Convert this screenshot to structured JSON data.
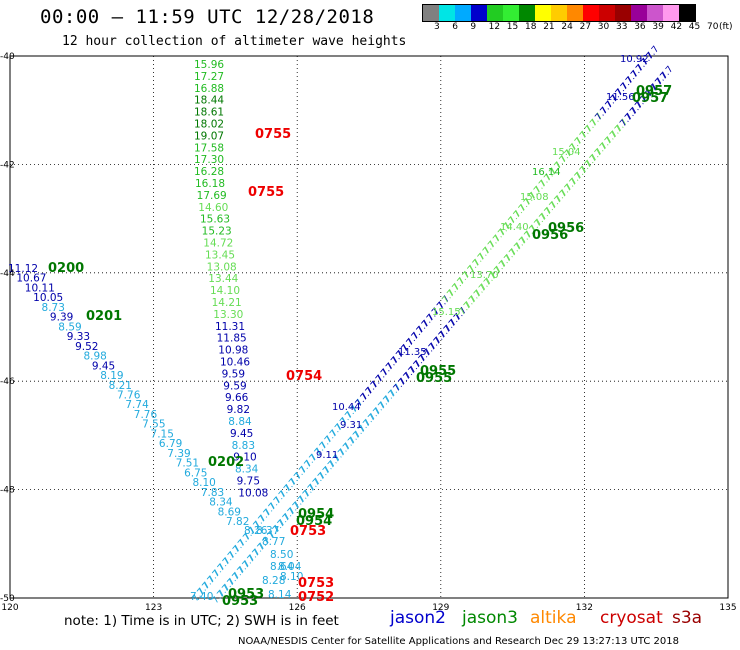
{
  "header": {
    "title": "00:00 – 11:59 UTC 12/28/2018",
    "subtitle": "12 hour collection of altimeter wave heights"
  },
  "legend": {
    "unit": "(ft)",
    "swatch_colors": [
      "#808080",
      "#00e5e5",
      "#00aaff",
      "#0000cc",
      "#22cc22",
      "#33ee33",
      "#008800",
      "#ffff00",
      "#ffcc00",
      "#ff8800",
      "#ff0000",
      "#cc0000",
      "#990000",
      "#990099",
      "#cc55cc",
      "#ff99ee",
      "#000000"
    ],
    "ticks": [
      "3",
      "6",
      "9",
      "12",
      "15",
      "18",
      "21",
      "24",
      "27",
      "30",
      "33",
      "36",
      "39",
      "42",
      "45",
      "70"
    ]
  },
  "axes": {
    "x_ticks": [
      "120",
      "123",
      "126",
      "129",
      "132",
      "135"
    ],
    "y_ticks": [
      "-40",
      "-42",
      "-44",
      "-46",
      "-48",
      "-50"
    ]
  },
  "colors": {
    "light_blue": "#22aadd",
    "dark_blue": "#0000aa",
    "light_green": "#66dd55",
    "green": "#22bb22",
    "dark_green": "#007700",
    "red": "#ee0000"
  },
  "tracks": {
    "north_south": [
      {
        "v": "15.96",
        "c": "green"
      },
      {
        "v": "17.27",
        "c": "green"
      },
      {
        "v": "16.88",
        "c": "green"
      },
      {
        "v": "18.44",
        "c": "dark_green"
      },
      {
        "v": "18.61",
        "c": "dark_green"
      },
      {
        "v": "18.02",
        "c": "dark_green"
      },
      {
        "v": "19.07",
        "c": "dark_green"
      },
      {
        "v": "17.58",
        "c": "green"
      },
      {
        "v": "17.30",
        "c": "green"
      },
      {
        "v": "16.28",
        "c": "green"
      },
      {
        "v": "16.18",
        "c": "green"
      },
      {
        "v": "17.69",
        "c": "green"
      },
      {
        "v": "14.60",
        "c": "light_green"
      },
      {
        "v": "15.63",
        "c": "green"
      },
      {
        "v": "15.23",
        "c": "green"
      },
      {
        "v": "14.72",
        "c": "light_green"
      },
      {
        "v": "13.45",
        "c": "light_green"
      },
      {
        "v": "13.08",
        "c": "light_green"
      },
      {
        "v": "13.44",
        "c": "light_green"
      },
      {
        "v": "14.10",
        "c": "light_green"
      },
      {
        "v": "14.21",
        "c": "light_green"
      },
      {
        "v": "13.30",
        "c": "light_green"
      },
      {
        "v": "11.31",
        "c": "dark_blue"
      },
      {
        "v": "11.85",
        "c": "dark_blue"
      },
      {
        "v": "10.98",
        "c": "dark_blue"
      },
      {
        "v": "10.46",
        "c": "dark_blue"
      },
      {
        "v": "9.59",
        "c": "dark_blue"
      },
      {
        "v": "9.59",
        "c": "dark_blue"
      },
      {
        "v": "9.66",
        "c": "dark_blue"
      },
      {
        "v": "9.82",
        "c": "dark_blue"
      },
      {
        "v": "8.84",
        "c": "light_blue"
      },
      {
        "v": "9.45",
        "c": "dark_blue"
      },
      {
        "v": "8.83",
        "c": "light_blue"
      },
      {
        "v": "9.10",
        "c": "dark_blue"
      },
      {
        "v": "8.34",
        "c": "light_blue"
      },
      {
        "v": "9.75",
        "c": "dark_blue"
      },
      {
        "v": "10.08",
        "c": "dark_blue"
      }
    ],
    "northwest": [
      {
        "v": "11.12",
        "c": "dark_blue"
      },
      {
        "v": "10.67",
        "c": "dark_blue"
      },
      {
        "v": "10.11",
        "c": "dark_blue"
      },
      {
        "v": "10.05",
        "c": "dark_blue"
      },
      {
        "v": "8.73",
        "c": "light_blue"
      },
      {
        "v": "9.39",
        "c": "dark_blue"
      },
      {
        "v": "8.59",
        "c": "light_blue"
      },
      {
        "v": "9.33",
        "c": "dark_blue"
      },
      {
        "v": "9.52",
        "c": "dark_blue"
      },
      {
        "v": "8.98",
        "c": "light_blue"
      },
      {
        "v": "9.45",
        "c": "dark_blue"
      },
      {
        "v": "8.19",
        "c": "light_blue"
      },
      {
        "v": "8.21",
        "c": "light_blue"
      },
      {
        "v": "7.76",
        "c": "light_blue"
      },
      {
        "v": "7.74",
        "c": "light_blue"
      },
      {
        "v": "7.76",
        "c": "light_blue"
      },
      {
        "v": "7.55",
        "c": "light_blue"
      },
      {
        "v": "7.15",
        "c": "light_blue"
      },
      {
        "v": "6.79",
        "c": "light_blue"
      },
      {
        "v": "7.39",
        "c": "light_blue"
      },
      {
        "v": "7.51",
        "c": "light_blue"
      },
      {
        "v": "6.75",
        "c": "light_blue"
      },
      {
        "v": "8.10",
        "c": "light_blue"
      },
      {
        "v": "7.83",
        "c": "light_blue"
      },
      {
        "v": "8.34",
        "c": "light_blue"
      },
      {
        "v": "8.69",
        "c": "light_blue"
      },
      {
        "v": "7.82",
        "c": "light_blue"
      }
    ],
    "bottom_cluster": [
      {
        "v": "8.26",
        "c": "light_blue"
      },
      {
        "v": "8.37",
        "c": "light_blue"
      },
      {
        "v": "8.77",
        "c": "light_blue"
      },
      {
        "v": "8.50",
        "c": "light_blue"
      },
      {
        "v": "8.64",
        "c": "light_blue"
      },
      {
        "v": "8.04",
        "c": "light_blue"
      },
      {
        "v": "8.28",
        "c": "light_blue"
      },
      {
        "v": "8.10",
        "c": "light_blue"
      },
      {
        "v": "8.14",
        "c": "light_blue"
      },
      {
        "v": "7.40",
        "c": "light_blue"
      }
    ],
    "diagonal_a": [
      {
        "v": "10.92",
        "c": "dark_blue"
      },
      {
        "v": "11.56",
        "c": "dark_blue"
      },
      {
        "v": "15.04",
        "c": "light_green"
      },
      {
        "v": "16.14",
        "c": "green"
      },
      {
        "v": "15.08",
        "c": "light_green"
      },
      {
        "v": "14.40",
        "c": "light_green"
      },
      {
        "v": "13.70",
        "c": "light_green"
      },
      {
        "v": "15.15",
        "c": "light_green"
      },
      {
        "v": "11.35",
        "c": "dark_blue"
      },
      {
        "v": "10.44",
        "c": "dark_blue"
      },
      {
        "v": "9.31",
        "c": "dark_blue"
      },
      {
        "v": "9.11",
        "c": "dark_blue"
      }
    ]
  },
  "time_labels": [
    {
      "t": "0755",
      "c": "red"
    },
    {
      "t": "0755",
      "c": "red"
    },
    {
      "t": "0200",
      "c": "dark_green"
    },
    {
      "t": "0201",
      "c": "dark_green"
    },
    {
      "t": "0754",
      "c": "red"
    },
    {
      "t": "0202",
      "c": "dark_green"
    },
    {
      "t": "0753",
      "c": "red"
    },
    {
      "t": "0753",
      "c": "red"
    },
    {
      "t": "0752",
      "c": "red"
    },
    {
      "t": "0954",
      "c": "dark_green"
    },
    {
      "t": "0954",
      "c": "dark_green"
    },
    {
      "t": "0953",
      "c": "dark_green"
    },
    {
      "t": "0953",
      "c": "dark_green"
    },
    {
      "t": "0957",
      "c": "dark_green"
    },
    {
      "t": "0957",
      "c": "dark_green"
    },
    {
      "t": "0956",
      "c": "dark_green"
    },
    {
      "t": "0956",
      "c": "dark_green"
    },
    {
      "t": "0955",
      "c": "dark_green"
    },
    {
      "t": "0955",
      "c": "dark_green"
    }
  ],
  "note": "note:  1) Time is in UTC;  2) SWH is in feet",
  "satellites": [
    {
      "name": "jason2",
      "color": "#0000cc"
    },
    {
      "name": "jason3",
      "color": "#008800"
    },
    {
      "name": "altika",
      "color": "#ff8800"
    },
    {
      "name": "cryosat",
      "color": "#cc0000"
    },
    {
      "name": "s3a",
      "color": "#990000"
    }
  ],
  "footer": "NOAA/NESDIS Center for Satellite Applications and Research   Dec 29 13:27:13 UTC 2018"
}
